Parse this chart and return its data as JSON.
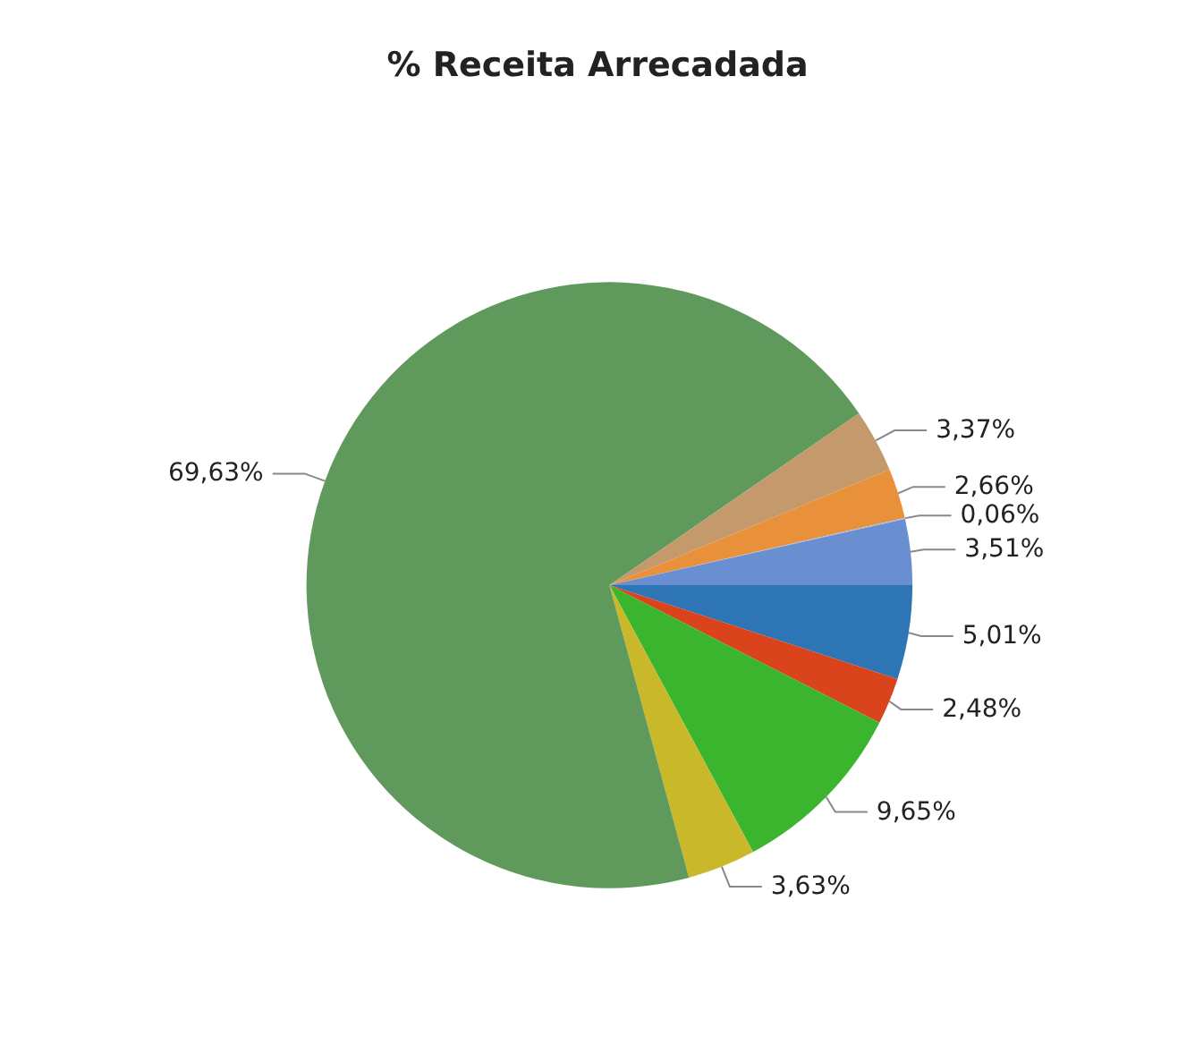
{
  "chart_data": {
    "type": "pie",
    "title": "% Receita Arrecadada",
    "categories": [
      null,
      null,
      null,
      null,
      null,
      null,
      null,
      null,
      null
    ],
    "values": [
      5.01,
      2.48,
      9.65,
      3.63,
      69.63,
      3.37,
      2.66,
      0.06,
      3.51
    ],
    "colors": [
      "#2e75b6",
      "#d9441c",
      "#3cb52e",
      "#c8b82a",
      "#5f9a5c",
      "#c49a6c",
      "#e8913a",
      "#a8b8d8",
      "#6a8fd0"
    ],
    "value_labels": [
      "5,01%",
      "2,48%",
      "9,65%",
      "3,63%",
      "69,63%",
      "3,37%",
      "2,66%",
      "0,06%",
      "3,51%"
    ]
  }
}
